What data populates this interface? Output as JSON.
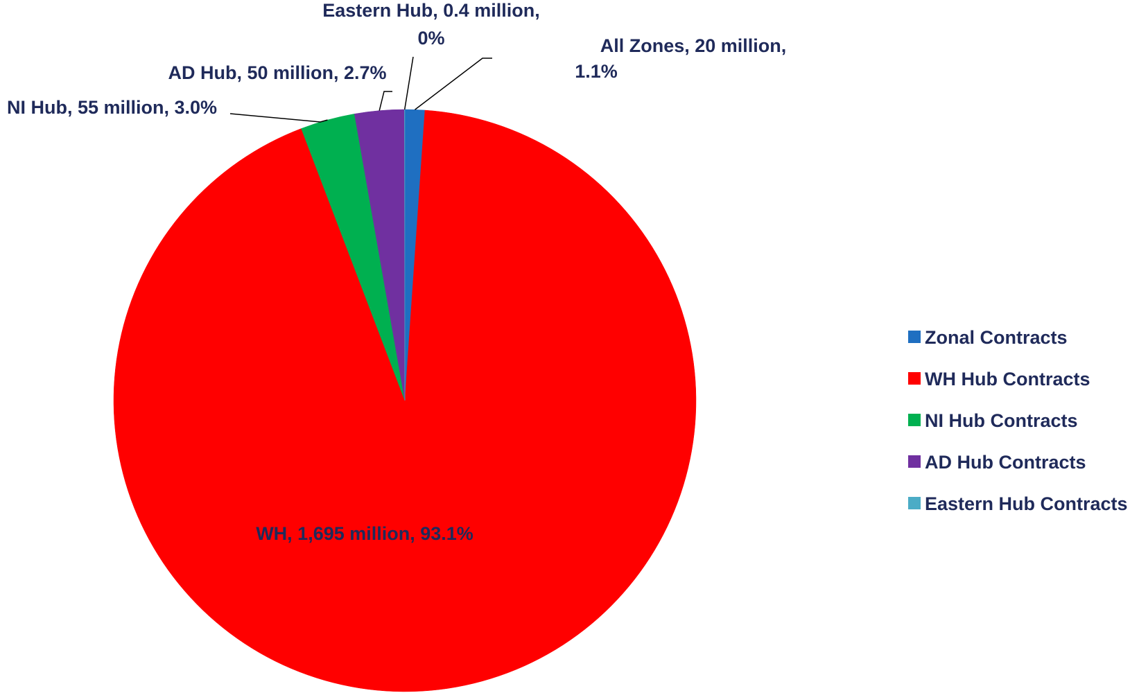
{
  "chart_data": {
    "type": "pie",
    "title": "",
    "slices": [
      {
        "label": "All Zones",
        "legend": "Zonal Contracts",
        "value": 20,
        "unit": "million",
        "percent": "1.1%",
        "color": "#1f6fc1",
        "label_lines": [
          "All Zones, 20 million,",
          "1.1%"
        ]
      },
      {
        "label": "WH",
        "legend": "WH Hub Contracts",
        "value": 1695,
        "unit": "million",
        "percent": "93.1%",
        "color": "#ff0000",
        "label_lines": [
          "WH, 1,695 million, 93.1%"
        ]
      },
      {
        "label": "NI Hub",
        "legend": "NI Hub Contracts",
        "value": 55,
        "unit": "million",
        "percent": "3.0%",
        "color": "#00b050",
        "label_lines": [
          "NI Hub, 55 million, 3.0%"
        ]
      },
      {
        "label": "AD Hub",
        "legend": "AD Hub Contracts",
        "value": 50,
        "unit": "million",
        "percent": "2.7%",
        "color": "#7030a0",
        "label_lines": [
          "AD Hub, 50 million, 2.7%"
        ]
      },
      {
        "label": "Eastern Hub",
        "legend": "Eastern Hub Contracts",
        "value": 0.4,
        "unit": "million",
        "percent": "0%",
        "color": "#4bacc6",
        "label_lines": [
          "Eastern Hub, 0.4 million,",
          "0%"
        ]
      }
    ],
    "legend_position": "right"
  }
}
